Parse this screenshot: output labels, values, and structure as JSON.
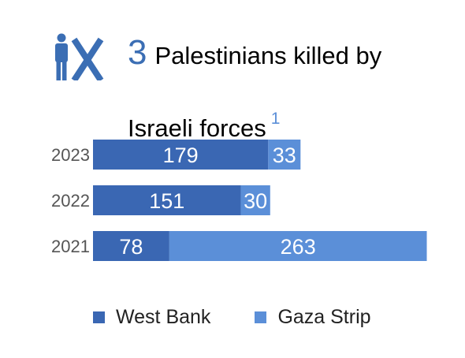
{
  "header": {
    "icon": "person-x-icon",
    "count": "3",
    "title_line1": "Palestinians killed by",
    "title_line2": "Israeli forces",
    "footnote": "1"
  },
  "colors": {
    "west_bank": "#3a67b3",
    "gaza_strip": "#5b8fd8",
    "icon": "#3b6eb4",
    "year_label": "#555555",
    "bar_text": "#ffffff"
  },
  "chart_data": {
    "type": "bar",
    "orientation": "horizontal",
    "stacked": true,
    "categories": [
      "2023",
      "2022",
      "2021"
    ],
    "series": [
      {
        "name": "West Bank",
        "values": [
          179,
          151,
          78
        ]
      },
      {
        "name": "Gaza Strip",
        "values": [
          33,
          30,
          263
        ]
      }
    ],
    "data_labels": true,
    "legend_position": "bottom"
  }
}
